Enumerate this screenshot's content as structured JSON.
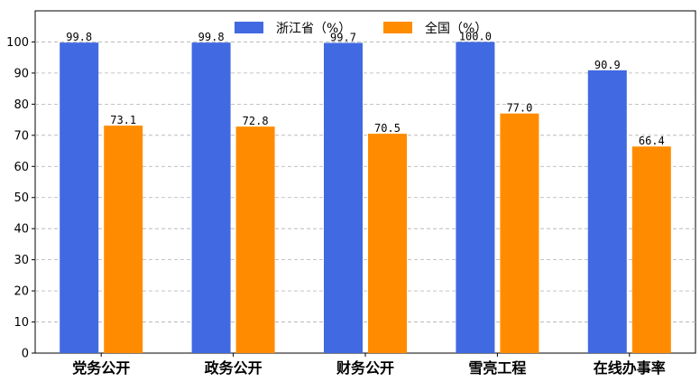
{
  "chart_data": {
    "type": "bar",
    "categories": [
      "党务公开",
      "政务公开",
      "财务公开",
      "雪亮工程",
      "在线办事率"
    ],
    "series": [
      {
        "name": "浙江省（%）",
        "values": [
          99.8,
          99.8,
          99.7,
          100.0,
          90.9
        ],
        "value_labels": [
          "99.8",
          "99.8",
          "99.7",
          "100.0",
          "90.9"
        ],
        "color": "#4169e1"
      },
      {
        "name": "全国（%）",
        "values": [
          73.1,
          72.8,
          70.5,
          77.0,
          66.4
        ],
        "value_labels": [
          "73.1",
          "72.8",
          "70.5",
          "77.0",
          "66.4"
        ],
        "color": "#ff8c00"
      }
    ],
    "ylim": [
      0,
      110
    ],
    "yticks": [
      "0",
      "10",
      "20",
      "30",
      "40",
      "50",
      "60",
      "70",
      "80",
      "90",
      "100"
    ],
    "grid": true,
    "legend_position": "top-center"
  }
}
